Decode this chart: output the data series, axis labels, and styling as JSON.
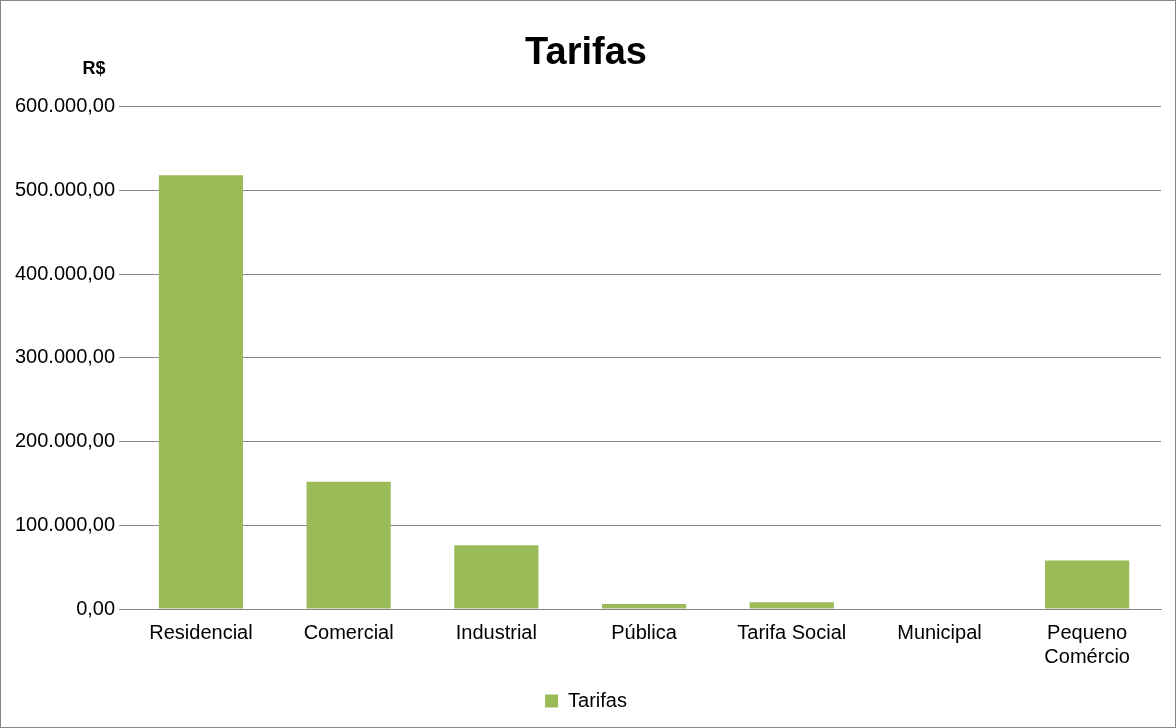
{
  "chart_data": {
    "type": "bar",
    "title": "Tarifas",
    "ylabel": "R$",
    "categories": [
      "Residencial",
      "Comercial",
      "Industrial",
      "Pública",
      "Tarifa Social",
      "Municipal",
      "Pequeno Comércio"
    ],
    "series": [
      {
        "name": "Tarifas",
        "color": "#9bbb59",
        "values": [
          518000,
          152000,
          76000,
          6000,
          8000,
          0,
          58000
        ]
      }
    ],
    "ylim": [
      0,
      600000
    ],
    "yticks": [
      {
        "value": 0,
        "label": "0,00"
      },
      {
        "value": 100000,
        "label": "100.000,00"
      },
      {
        "value": 200000,
        "label": "200.000,00"
      },
      {
        "value": 300000,
        "label": "300.000,00"
      },
      {
        "value": 400000,
        "label": "400.000,00"
      },
      {
        "value": 500000,
        "label": "500.000,00"
      },
      {
        "value": 600000,
        "label": "600.000,00"
      }
    ],
    "grid": "y",
    "legend": "bottom"
  }
}
